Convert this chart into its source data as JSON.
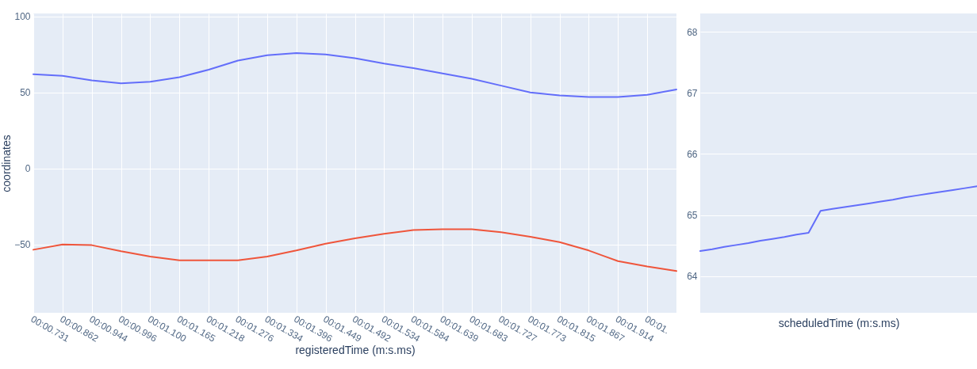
{
  "chart_data": [
    {
      "type": "line",
      "xlabel": "registeredTime (m:s.ms)",
      "ylabel": "coordinates",
      "categories": [
        "00:00.731",
        "00:00.862",
        "00:00.944",
        "00:00.996",
        "00:01.100",
        "00:01.165",
        "00:01.218",
        "00:01.276",
        "00:01.334",
        "00:01.396",
        "00:01.449",
        "00:01.492",
        "00:01.534",
        "00:01.584",
        "00:01.639",
        "00:01.683",
        "00:01.727",
        "00:01.773",
        "00:01.815",
        "00:01.867",
        "00:01.914",
        "00:01.",
        null
      ],
      "ylim": [
        -95,
        102
      ],
      "yticks": [
        -50,
        0,
        50,
        100
      ],
      "grid": true,
      "series": [
        {
          "color": "#636efa",
          "values": [
            62,
            61,
            58,
            56,
            57,
            60,
            65,
            71,
            74.5,
            76,
            75,
            72.5,
            69,
            66,
            62.5,
            59,
            54.5,
            50,
            48,
            47,
            47,
            48.5,
            52
          ]
        },
        {
          "color": "#ef553b",
          "values": [
            -53.5,
            -50,
            -50.5,
            -54.5,
            -58,
            -60.5,
            -60.5,
            -60.5,
            -58,
            -54,
            -49.5,
            -46,
            -43,
            -40.5,
            -40,
            -40,
            -42,
            -45,
            -48.5,
            -54,
            -61,
            -64.5,
            -67.5
          ]
        }
      ]
    },
    {
      "type": "line",
      "xlabel": "scheduledTime (m:s.ms)",
      "categories": [
        null,
        null,
        null,
        null,
        null,
        null,
        null,
        null,
        null,
        null,
        null,
        null,
        null,
        null,
        null,
        null,
        null,
        null,
        null,
        null,
        null,
        null,
        null,
        null
      ],
      "ylim": [
        63.4,
        68.3
      ],
      "yticks": [
        64,
        65,
        66,
        67,
        68
      ],
      "grid": "y",
      "tick_labels": "y",
      "series": [
        {
          "color": "#636efa",
          "values": [
            64.41,
            64.44,
            64.48,
            64.51,
            64.54,
            64.58,
            64.61,
            64.64,
            64.68,
            64.71,
            65.07,
            65.1,
            65.13,
            65.16,
            65.19,
            65.22,
            65.25,
            65.29,
            65.32,
            65.35,
            65.38,
            65.41,
            65.44,
            65.47
          ]
        }
      ]
    }
  ]
}
